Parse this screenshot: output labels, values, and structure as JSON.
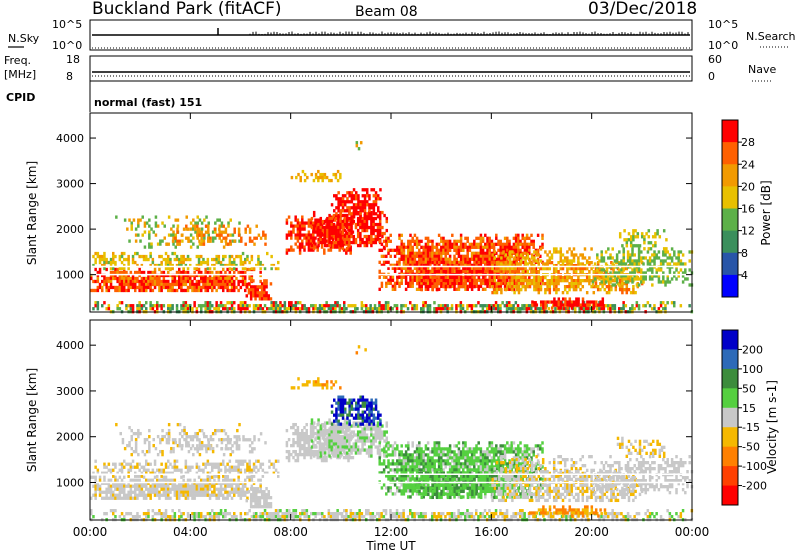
{
  "header": {
    "title": "Buckland Park (fitACF)",
    "beam": "Beam 08",
    "date": "03/Dec/2018"
  },
  "nsky_panel": {
    "left_label": "N.Sky",
    "right_label": "N.Search",
    "left_ticks": [
      "10^5",
      "10^0"
    ],
    "right_ticks": [
      "10^5",
      "10^0"
    ]
  },
  "freq_panel": {
    "left_label_top": "Freq.",
    "left_label_unit": "[MHz]",
    "right_label": "Nave",
    "left_ticks": [
      "18",
      "8"
    ],
    "right_ticks": [
      "60",
      "0"
    ]
  },
  "cpid_panel": {
    "label": "CPID",
    "mode_text": "normal (fast) 151"
  },
  "chart_data": [
    {
      "type": "heatmap",
      "name": "power",
      "ylabel": "Slant Range [km]",
      "ylim": [
        180,
        4550
      ],
      "yticks": [
        "1000",
        "2000",
        "3000",
        "4000"
      ],
      "xticks": [
        "00:00",
        "04:00",
        "08:00",
        "12:00",
        "16:00",
        "20:00",
        "00:00"
      ],
      "colorbar": {
        "label": "Power [dB]",
        "ticks": [
          "4",
          "8",
          "12",
          "16",
          "20",
          "24",
          "28"
        ],
        "colors": [
          "#0000ff",
          "#2855a8",
          "#3a8f5c",
          "#5cb048",
          "#e8c000",
          "#f29a00",
          "#ff6000",
          "#ff0000"
        ]
      }
    },
    {
      "type": "heatmap",
      "name": "velocity",
      "ylabel": "Slant Range [km]",
      "ylim": [
        180,
        4550
      ],
      "yticks": [
        "1000",
        "2000",
        "3000",
        "4000"
      ],
      "xticks": [
        "00:00",
        "04:00",
        "08:00",
        "12:00",
        "16:00",
        "20:00",
        "00:00"
      ],
      "xlabel": "Time UT",
      "colorbar": {
        "label": "Velocity [m s-1]",
        "ticks": [
          "200",
          "100",
          "50",
          "15",
          "-15",
          "-50",
          "-100",
          "-200"
        ],
        "colors": [
          "#0000c8",
          "#2d6ab8",
          "#3c8c3c",
          "#55d040",
          "#c8c8c8",
          "#f5b800",
          "#ff8000",
          "#ff4000",
          "#ff0000"
        ]
      }
    }
  ]
}
